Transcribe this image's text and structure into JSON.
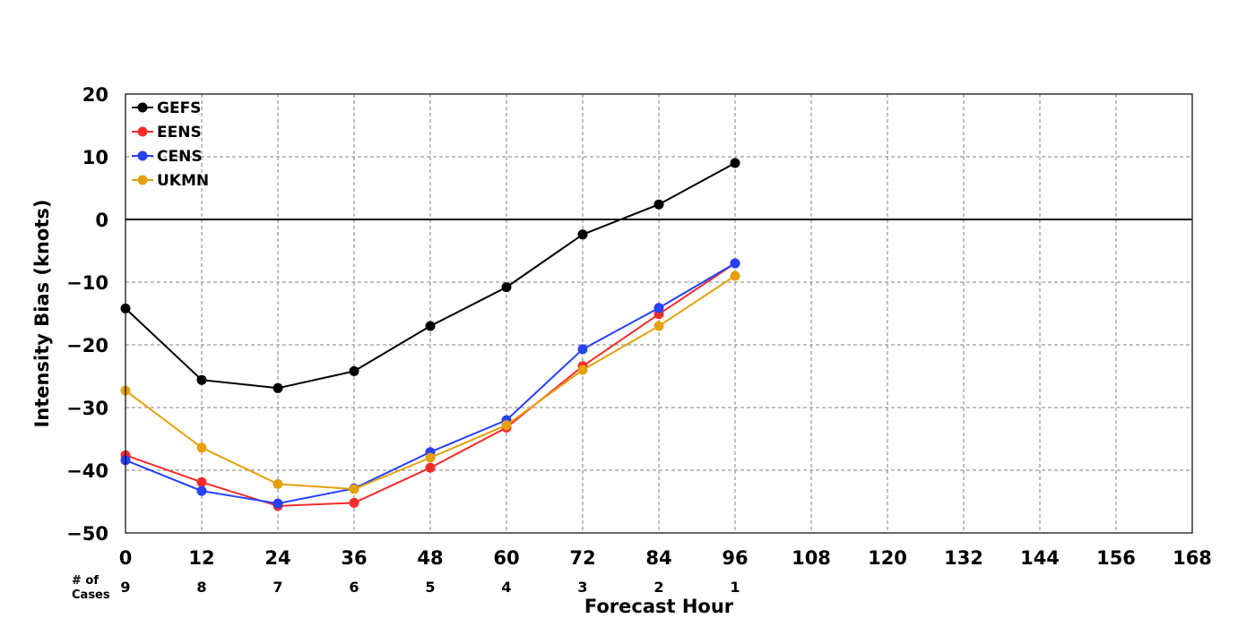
{
  "chart_data": {
    "type": "line",
    "xlabel": "Forecast Hour",
    "ylabel": "Intensity Bias (knots)",
    "xlim": [
      0,
      168
    ],
    "ylim": [
      -50,
      20
    ],
    "xticks": [
      0,
      12,
      24,
      36,
      48,
      60,
      72,
      84,
      96,
      108,
      120,
      132,
      144,
      156,
      168
    ],
    "yticks": [
      20,
      10,
      0,
      -10,
      -20,
      -30,
      -40,
      -50
    ],
    "ytick_labels": [
      "20",
      "10",
      "0",
      "−10",
      "−20",
      "−30",
      "−40",
      "−50"
    ],
    "grid": true,
    "zero_line": true,
    "legend_position": "top-left",
    "cases_label_line1": "# of",
    "cases_label_line2": "Cases",
    "cases": [
      {
        "x": 0,
        "n": "9"
      },
      {
        "x": 12,
        "n": "8"
      },
      {
        "x": 24,
        "n": "7"
      },
      {
        "x": 36,
        "n": "6"
      },
      {
        "x": 48,
        "n": "5"
      },
      {
        "x": 60,
        "n": "4"
      },
      {
        "x": 72,
        "n": "3"
      },
      {
        "x": 84,
        "n": "2"
      },
      {
        "x": 96,
        "n": "1"
      }
    ],
    "x": [
      0,
      12,
      24,
      36,
      48,
      60,
      72,
      84,
      96
    ],
    "series": [
      {
        "name": "GEFS",
        "color": "#000000",
        "values": [
          -14.2,
          -25.6,
          -26.9,
          -24.2,
          -17.0,
          -10.8,
          -2.4,
          2.4,
          9.0
        ]
      },
      {
        "name": "EENS",
        "color": "#f42c2c",
        "values": [
          -37.6,
          -41.9,
          -45.7,
          -45.2,
          -39.6,
          -33.2,
          -23.4,
          -15.1,
          -7.0
        ]
      },
      {
        "name": "CENS",
        "color": "#2642f4",
        "values": [
          -38.4,
          -43.3,
          -45.3,
          -42.9,
          -37.1,
          -32.0,
          -20.7,
          -14.1,
          -7.0
        ]
      },
      {
        "name": "UKMN",
        "color": "#e5a00d",
        "values": [
          -27.3,
          -36.4,
          -42.2,
          -43.0,
          -38.0,
          -32.8,
          -24.0,
          -17.0,
          -9.0
        ]
      }
    ]
  }
}
